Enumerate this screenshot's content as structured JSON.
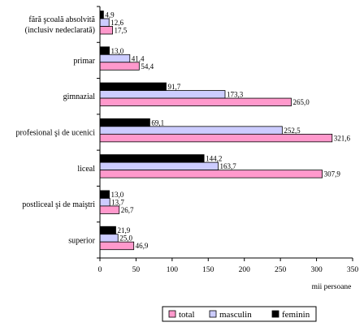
{
  "chart_data": {
    "type": "bar",
    "orientation": "horizontal",
    "categories": [
      [
        "fără şcoală absolvită",
        "(inclusiv nedeclarată)"
      ],
      [
        "primar"
      ],
      [
        "gimnazial"
      ],
      [
        "profesional şi de ucenici"
      ],
      [
        "liceal"
      ],
      [
        "postliceal şi de maiştri"
      ],
      [
        "superior"
      ]
    ],
    "series": [
      {
        "name": "feminin",
        "color": "#000000",
        "values": [
          4.9,
          13.0,
          91.7,
          69.1,
          144.2,
          13.0,
          21.9
        ],
        "labels": [
          "4,9",
          "13,0",
          "91,7",
          "69,1",
          "144,2",
          "13,0",
          "21,9"
        ]
      },
      {
        "name": "masculin",
        "color": "#ccccff",
        "values": [
          12.6,
          41.4,
          173.3,
          252.5,
          163.7,
          13.7,
          25.0
        ],
        "labels": [
          "12,6",
          "41,4",
          "173,3",
          "252,5",
          "163,7",
          "13,7",
          "25,0"
        ]
      },
      {
        "name": "total",
        "color": "#ff99cc",
        "values": [
          17.5,
          54.4,
          265.0,
          321.6,
          307.9,
          26.7,
          46.9
        ],
        "labels": [
          "17,5",
          "54,4",
          "265,0",
          "321,6",
          "307,9",
          "26,7",
          "46,9"
        ]
      }
    ],
    "legend_order": [
      "total",
      "masculin",
      "feminin"
    ],
    "xlim": [
      0,
      350
    ],
    "xticks": [
      0,
      50,
      100,
      150,
      200,
      250,
      300,
      350
    ],
    "xlabel": "mii persoane",
    "ylabel": "",
    "title": "",
    "grid": false,
    "legend_position": "bottom"
  }
}
